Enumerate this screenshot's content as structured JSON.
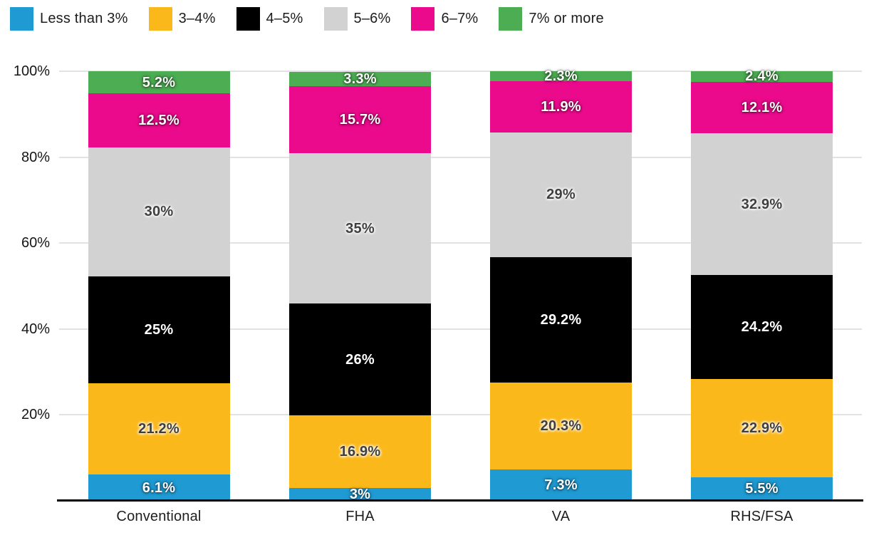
{
  "background": "#ffffff",
  "axis_color": "#000000",
  "grid_color": "#e2e2e2",
  "legend": {
    "position": "top-left",
    "items": [
      {
        "label": "Less than 3%",
        "color": "#1F9AD3"
      },
      {
        "label": "3–4%",
        "color": "#FBB81A"
      },
      {
        "label": "4–5%",
        "color": "#000000"
      },
      {
        "label": "5–6%",
        "color": "#D2D2D2"
      },
      {
        "label": "6–7%",
        "color": "#EB0A8C"
      },
      {
        "label": "7% or more",
        "color": "#4CAD52"
      }
    ]
  },
  "chart_data": {
    "type": "bar",
    "stacked": true,
    "title": "",
    "xlabel": "",
    "ylabel": "",
    "categories": [
      "Conventional",
      "FHA",
      "VA",
      "RHS/FSA"
    ],
    "series": [
      {
        "name": "Less than 3%",
        "color": "#1F9AD3",
        "label_style": "light",
        "values": [
          6.1,
          3,
          7.3,
          5.5
        ],
        "labels": [
          "6.1%",
          "3%",
          "7.3%",
          "5.5%"
        ]
      },
      {
        "name": "3–4%",
        "color": "#FBB81A",
        "label_style": "dark",
        "values": [
          21.2,
          16.9,
          20.3,
          22.9
        ],
        "labels": [
          "21.2%",
          "16.9%",
          "20.3%",
          "22.9%"
        ]
      },
      {
        "name": "4–5%",
        "color": "#000000",
        "label_style": "light",
        "values": [
          25,
          26,
          29.2,
          24.2
        ],
        "labels": [
          "25%",
          "26%",
          "29.2%",
          "24.2%"
        ]
      },
      {
        "name": "5–6%",
        "color": "#D2D2D2",
        "label_style": "dark",
        "values": [
          30,
          35,
          29,
          32.9
        ],
        "labels": [
          "30%",
          "35%",
          "29%",
          "32.9%"
        ]
      },
      {
        "name": "6–7%",
        "color": "#EB0A8C",
        "label_style": "light",
        "values": [
          12.5,
          15.7,
          11.9,
          12.1
        ],
        "labels": [
          "12.5%",
          "15.7%",
          "11.9%",
          "12.1%"
        ]
      },
      {
        "name": "7% or more",
        "color": "#4CAD52",
        "label_style": "light",
        "values": [
          5.2,
          3.3,
          2.3,
          2.4
        ],
        "labels": [
          "5.2%",
          "3.3%",
          "2.3%",
          "2.4%"
        ]
      }
    ],
    "y_axis": {
      "ticks": [
        "20%",
        "40%",
        "60%",
        "80%",
        "100%"
      ],
      "min": 0,
      "max": 100,
      "grid": true
    },
    "legend_position": "top-left"
  }
}
